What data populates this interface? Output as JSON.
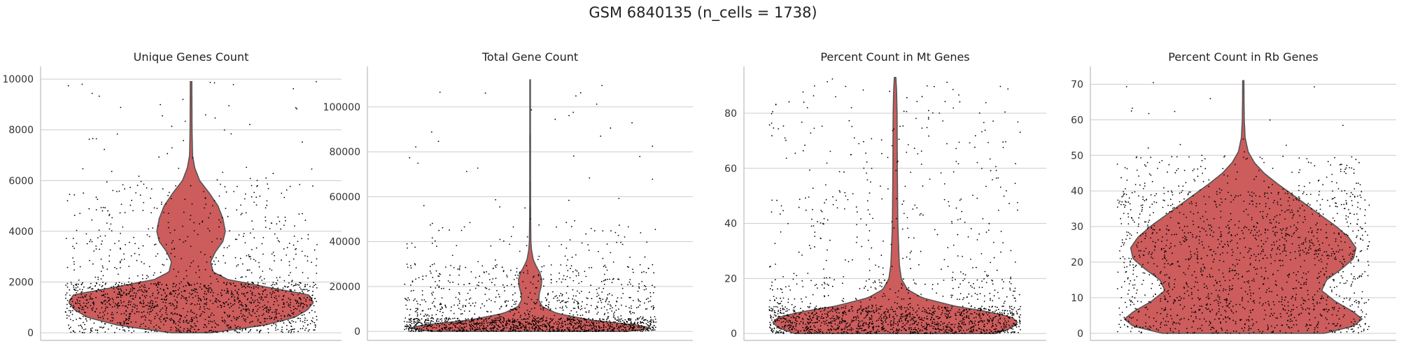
{
  "title": "GSM 6840135 (n_cells = 1738)",
  "colors": {
    "violin_fill": "#cd5c5c",
    "violin_edge": "#555555",
    "points": "#000000",
    "grid": "#cccccc",
    "axis": "#bbbbbb"
  },
  "chart_data": [
    {
      "type": "violin",
      "title": "Unique Genes Count",
      "ylim": [
        -300,
        10500
      ],
      "yticks": [
        0,
        2000,
        4000,
        6000,
        8000,
        10000
      ],
      "ytick_labels": [
        "0",
        "2000",
        "4000",
        "6000",
        "8000",
        "10000"
      ],
      "grid": "y",
      "n_points": 1738,
      "max": 9900,
      "profile": [
        [
          0,
          0.16
        ],
        [
          300,
          0.6
        ],
        [
          600,
          0.84
        ],
        [
          900,
          0.95
        ],
        [
          1200,
          1.0
        ],
        [
          1500,
          0.96
        ],
        [
          1800,
          0.62
        ],
        [
          2100,
          0.3
        ],
        [
          2400,
          0.18
        ],
        [
          2800,
          0.16
        ],
        [
          3200,
          0.2
        ],
        [
          3600,
          0.26
        ],
        [
          4000,
          0.28
        ],
        [
          4500,
          0.26
        ],
        [
          5000,
          0.22
        ],
        [
          5500,
          0.15
        ],
        [
          6000,
          0.07
        ],
        [
          6500,
          0.03
        ],
        [
          7000,
          0.012
        ],
        [
          8000,
          0.008
        ],
        [
          9900,
          0.006
        ]
      ],
      "point_dist": [
        [
          0,
          300,
          0.1
        ],
        [
          300,
          1000,
          0.22
        ],
        [
          1000,
          2000,
          0.42
        ],
        [
          2000,
          4000,
          0.14
        ],
        [
          4000,
          6000,
          0.1
        ],
        [
          6000,
          10000,
          0.02
        ]
      ]
    },
    {
      "type": "violin",
      "title": "Total Gene Count",
      "ylim": [
        -4000,
        118000
      ],
      "yticks": [
        0,
        20000,
        40000,
        60000,
        80000,
        100000
      ],
      "ytick_labels": [
        "0",
        "20000",
        "40000",
        "60000",
        "80000",
        "100000"
      ],
      "grid": "y",
      "n_points": 1738,
      "max": 112000,
      "profile": [
        [
          0,
          0.8
        ],
        [
          1500,
          1.0
        ],
        [
          3000,
          0.85
        ],
        [
          5000,
          0.5
        ],
        [
          8000,
          0.22
        ],
        [
          11000,
          0.1
        ],
        [
          14000,
          0.07
        ],
        [
          17000,
          0.075
        ],
        [
          20000,
          0.09
        ],
        [
          23000,
          0.095
        ],
        [
          26000,
          0.08
        ],
        [
          29000,
          0.05
        ],
        [
          32000,
          0.025
        ],
        [
          36000,
          0.012
        ],
        [
          40000,
          0.006
        ],
        [
          50000,
          0.004
        ],
        [
          70000,
          0.003
        ],
        [
          112000,
          0.002
        ]
      ],
      "point_dist": [
        [
          0,
          6000,
          0.6
        ],
        [
          6000,
          15000,
          0.18
        ],
        [
          15000,
          30000,
          0.16
        ],
        [
          30000,
          50000,
          0.04
        ],
        [
          50000,
          112000,
          0.02
        ]
      ]
    },
    {
      "type": "violin",
      "title": "Percent Count in Mt Genes",
      "ylim": [
        -2.5,
        97
      ],
      "yticks": [
        0,
        20,
        40,
        60,
        80
      ],
      "ytick_labels": [
        "0",
        "20",
        "40",
        "60",
        "80"
      ],
      "grid": "y",
      "n_points": 1738,
      "max": 93,
      "profile": [
        [
          0,
          0.82
        ],
        [
          2,
          0.95
        ],
        [
          4,
          1.0
        ],
        [
          6,
          0.95
        ],
        [
          8,
          0.75
        ],
        [
          10,
          0.48
        ],
        [
          13,
          0.22
        ],
        [
          16,
          0.1
        ],
        [
          20,
          0.05
        ],
        [
          25,
          0.035
        ],
        [
          30,
          0.03
        ],
        [
          40,
          0.022
        ],
        [
          50,
          0.02
        ],
        [
          60,
          0.018
        ],
        [
          70,
          0.017
        ],
        [
          80,
          0.016
        ],
        [
          88,
          0.012
        ],
        [
          93,
          0.006
        ]
      ],
      "point_dist": [
        [
          0,
          10,
          0.7
        ],
        [
          10,
          20,
          0.12
        ],
        [
          20,
          50,
          0.1
        ],
        [
          50,
          93,
          0.08
        ]
      ]
    },
    {
      "type": "violin",
      "title": "Percent Count in Rb Genes",
      "ylim": [
        -2,
        75
      ],
      "yticks": [
        0,
        10,
        20,
        30,
        40,
        50,
        60,
        70
      ],
      "ytick_labels": [
        "0",
        "10",
        "20",
        "30",
        "40",
        "50",
        "60",
        "70"
      ],
      "grid": "y",
      "n_points": 1738,
      "max": 71,
      "profile": [
        [
          0,
          0.66
        ],
        [
          2,
          0.9
        ],
        [
          4,
          0.97
        ],
        [
          6,
          0.9
        ],
        [
          9,
          0.75
        ],
        [
          12,
          0.64
        ],
        [
          15,
          0.68
        ],
        [
          18,
          0.8
        ],
        [
          21,
          0.9
        ],
        [
          24,
          0.92
        ],
        [
          27,
          0.86
        ],
        [
          30,
          0.76
        ],
        [
          34,
          0.6
        ],
        [
          38,
          0.44
        ],
        [
          42,
          0.28
        ],
        [
          45,
          0.17
        ],
        [
          48,
          0.09
        ],
        [
          51,
          0.04
        ],
        [
          55,
          0.015
        ],
        [
          60,
          0.008
        ],
        [
          65,
          0.006
        ],
        [
          71,
          0.005
        ]
      ],
      "point_dist": [
        [
          0,
          10,
          0.28
        ],
        [
          10,
          20,
          0.2
        ],
        [
          20,
          30,
          0.26
        ],
        [
          30,
          40,
          0.18
        ],
        [
          40,
          50,
          0.07
        ],
        [
          50,
          71,
          0.01
        ]
      ]
    }
  ]
}
